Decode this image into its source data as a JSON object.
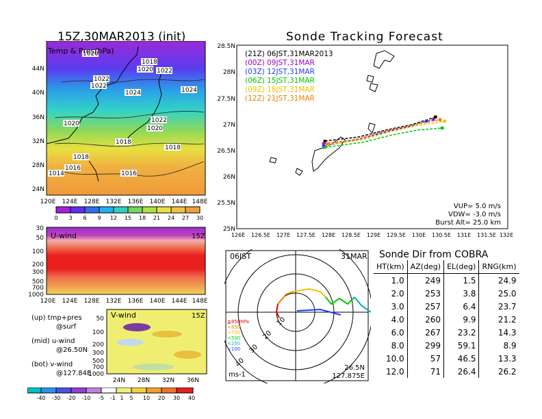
{
  "left_title": "15Z,30MAR2013 (init)",
  "right_title": "Sonde Tracking Forecast",
  "map_panel": {
    "label": "Temp & Pres(hPa)",
    "lat_ticks": [
      "44N",
      "40N",
      "36N",
      "32N",
      "28N",
      "24N"
    ],
    "lon_ticks": [
      "120E",
      "124E",
      "128E",
      "132E",
      "136E",
      "140E",
      "144E",
      "148E"
    ],
    "colorbar_ticks": [
      "0",
      "3",
      "6",
      "9",
      "12",
      "15",
      "18",
      "21",
      "24",
      "27",
      "30"
    ],
    "pressure_labels": [
      "1020",
      "1018",
      "1020",
      "1022",
      "1022",
      "1022",
      "1024",
      "1024",
      "1020",
      "1022",
      "1020",
      "1018",
      "1018",
      "1018",
      "1016",
      "1014",
      "1016"
    ]
  },
  "uwind_panel": {
    "label": "U-wind",
    "time": "15Z",
    "p_ticks": [
      "30",
      "50",
      "100",
      "200",
      "300",
      "500",
      "700",
      "1000"
    ],
    "lon_ticks": [
      "120E",
      "124E",
      "128E",
      "132E",
      "136E",
      "140E",
      "144E",
      "148E"
    ]
  },
  "vwind_panel": {
    "label": "V-wind",
    "time": "15Z",
    "p_ticks": [
      "50",
      "100",
      "200",
      "300",
      "500",
      "700",
      "1000"
    ],
    "lat_ticks": [
      "24N",
      "28N",
      "32N",
      "36N"
    ],
    "colorbar_ticks": [
      "-40",
      "-30",
      "-20",
      "-10",
      "-5",
      "-1",
      "1",
      "5",
      "10",
      "20",
      "30",
      "40"
    ]
  },
  "legend_notes": {
    "up": "(up) tmp+pres",
    "up2": "@surf",
    "mid": "(mid) u-wind",
    "mid2": "@26.50N",
    "bot": "(bot) v-wind",
    "bot2": "@127.84E"
  },
  "track_panel": {
    "lat_ticks": [
      "28.5N",
      "28N",
      "27.5N",
      "27N",
      "26.5N",
      "26N",
      "25.5N",
      "25N"
    ],
    "lon_ticks": [
      "126E",
      "126.5E",
      "127E",
      "127.5E",
      "128E",
      "128.5E",
      "129E",
      "129.5E",
      "130E",
      "130.5E",
      "131E",
      "131.5E",
      "132E"
    ],
    "legend": [
      {
        "text": "(21Z)  06JST,31MAR2013",
        "color": "#000000"
      },
      {
        "text": "(00Z)  09JST,31MAR",
        "color": "#a000c8"
      },
      {
        "text": "(03Z)  12JST,31MAR",
        "color": "#1e3cff"
      },
      {
        "text": "(06Z)  15JST,31MAR",
        "color": "#00c800"
      },
      {
        "text": "(09Z)  18JST,31MAR",
        "color": "#f0c000"
      },
      {
        "text": "(12Z)  21JST,31MAR",
        "color": "#f08000"
      }
    ],
    "vup": "VUP=  5.0  m/s",
    "vdw": "VDW= -3.0  m/s",
    "burst": "Burst Alt=  25.0  km"
  },
  "chart_data": {
    "type": "line",
    "title": "Sonde Tracking Forecast",
    "xlim": [
      126,
      132
    ],
    "ylim": [
      25,
      28.5
    ],
    "series": [
      {
        "name": "(21Z) 06JST,31MAR2013",
        "color": "#000000",
        "x": [
          127.95,
          128.7,
          129.3,
          129.9,
          130.4
        ],
        "y": [
          26.67,
          26.75,
          26.88,
          26.99,
          27.13
        ]
      },
      {
        "name": "(00Z) 09JST,31MAR",
        "color": "#a000c8",
        "x": [
          127.92,
          128.65,
          129.25,
          129.85,
          130.35
        ],
        "y": [
          26.62,
          26.7,
          26.85,
          26.96,
          27.08
        ]
      },
      {
        "name": "(03Z) 12JST,31MAR",
        "color": "#1e3cff",
        "x": [
          127.92,
          128.6,
          129.2,
          129.8,
          130.2
        ],
        "y": [
          26.58,
          26.68,
          26.82,
          26.94,
          27.05
        ]
      },
      {
        "name": "(06Z) 15JST,31MAR",
        "color": "#00c800",
        "x": [
          127.95,
          128.8,
          129.4,
          130.0,
          130.55
        ],
        "y": [
          26.55,
          26.65,
          26.78,
          26.88,
          26.92
        ]
      },
      {
        "name": "(09Z) 18JST,31MAR",
        "color": "#f0c000",
        "x": [
          128.0,
          128.8,
          129.4,
          130.0,
          130.6
        ],
        "y": [
          26.6,
          26.7,
          26.85,
          26.97,
          27.05
        ]
      },
      {
        "name": "(12Z) 21JST,31MAR",
        "color": "#f08000",
        "x": [
          128.0,
          128.75,
          129.35,
          129.95,
          130.5
        ],
        "y": [
          26.62,
          26.72,
          26.88,
          26.99,
          27.08
        ]
      }
    ]
  },
  "hodograph": {
    "time_left": "06JST",
    "time_right": "31MAR",
    "ring_labels": [
      "10",
      "20",
      "30",
      "40"
    ],
    "unit": "ms-1",
    "loc1": "26.5N",
    "loc2": "127.875E",
    "layers": [
      {
        "text": "≧850hPa",
        "color": "#e00000"
      },
      {
        "text": "<850",
        "color": "#f08000"
      },
      {
        "text": "<700",
        "color": "#f0c000"
      },
      {
        "text": "<500",
        "color": "#00c800"
      },
      {
        "text": "<250",
        "color": "#00b0b0"
      },
      {
        "text": "<100",
        "color": "#1e3cff"
      }
    ]
  },
  "sonde_dir": {
    "title": "Sonde Dir from COBRA",
    "headers": [
      "HT(km)",
      "AZ(deg)",
      "EL(deg)",
      "RNG(km)"
    ],
    "rows": [
      [
        "1.0",
        "249",
        "1.5",
        "24.9"
      ],
      [
        "2.0",
        "253",
        "3.8",
        "25.0"
      ],
      [
        "3.0",
        "257",
        "6.4",
        "23.7"
      ],
      [
        "4.0",
        "260",
        "9.9",
        "21.2"
      ],
      [
        "6.0",
        "267",
        "23.2",
        "14.3"
      ],
      [
        "8.0",
        "299",
        "59.1",
        "8.9"
      ],
      [
        "10.0",
        "57",
        "46.5",
        "13.3"
      ],
      [
        "12.0",
        "71",
        "26.4",
        "26.2"
      ]
    ]
  }
}
